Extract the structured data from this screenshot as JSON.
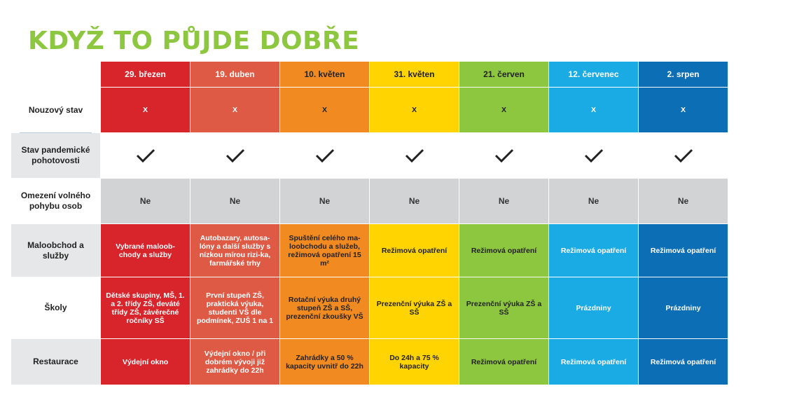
{
  "title": "KDYŽ TO PŮJDE DOBŘE",
  "dates": [
    "29. březen",
    "19. duben",
    "10. květen",
    "31. květen",
    "21. červen",
    "12. červenec",
    "2. srpen"
  ],
  "colors": [
    "#d7252b",
    "#df5a45",
    "#f18b21",
    "#ffd400",
    "#8dc63f",
    "#1aaae4",
    "#0c6fb6"
  ],
  "row_labels": {
    "nouzovy": "Nouzový stav",
    "pohotovost": "Stav pandemické pohotovosti",
    "omezeni": "Omezení volného pohybu osob",
    "maloobchod": "Maloobchod a služby",
    "skoly": "Školy",
    "restaurace": "Restaurace"
  },
  "nouzovy": [
    "X",
    "X",
    "X",
    "X",
    "X",
    "X",
    "X"
  ],
  "pohotovost_icon": "checkmark-icon",
  "omezeni": [
    "Ne",
    "Ne",
    "Ne",
    "Ne",
    "Ne",
    "Ne",
    "Ne"
  ],
  "maloobchod": [
    "Vybrané maloob-chody a služby",
    "Autobazary, autosa-lóny a další služby s nízkou mírou rizi-ka, farmářské trhy",
    "Spuštění celého ma-loobchodu a služeb, režimová opatření 15 m²",
    "Režimová opatření",
    "Režimová opatření",
    "Režimová opatření",
    "Režimová opatření"
  ],
  "skoly": [
    "Dětské skupiny, MŠ, 1. a 2. třídy ZŠ, deváté třídy ZŠ, závěrečné ročníky SŠ",
    "První stupeň ZŠ, praktická výuka, studenti VŠ dle podmínek, ZUŠ 1 na 1",
    "Rotační výuka druhý stupeň ZŠ a SŠ, prezenční zkoušky VŠ",
    "Prezenční výuka ZŠ a SŠ",
    "Prezenční výuka ZŠ a SŠ",
    "Prázdniny",
    "Prázdniny"
  ],
  "restaurace": [
    "Výdejní okno",
    "Výdejní okno / při dobrém vývoji již zahrádky do 22h",
    "Zahrádky a 50 % kapacity uvnitř do 22h",
    "Do 24h a 75 % kapacity",
    "Režimová opatření",
    "Režimová opatření",
    "Režimová opatření"
  ]
}
